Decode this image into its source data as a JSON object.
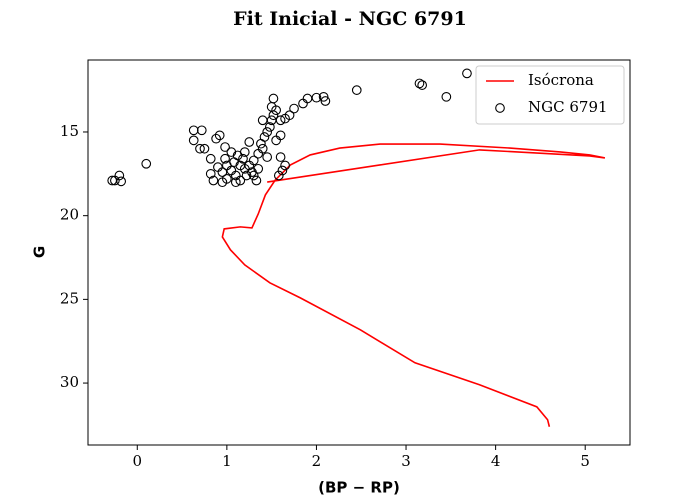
{
  "chart_data": {
    "type": "scatter",
    "title": "Fit Inicial - NGC 6791",
    "x_label": "(BP − RP)",
    "y_label": "G",
    "xlim": [
      -0.55,
      5.5
    ],
    "ylim": [
      33.7,
      10.7
    ],
    "xticks": [
      0,
      1,
      2,
      3,
      4,
      5
    ],
    "yticks": [
      15,
      20,
      25,
      30
    ],
    "legend": "upper right",
    "series": [
      {
        "name": "Isócrona",
        "type": "line",
        "color": "#ff0000",
        "x": [
          4.6,
          4.58,
          4.46,
          3.82,
          3.1,
          2.49,
          1.82,
          1.48,
          1.2,
          1.04,
          0.95,
          0.97,
          1.15,
          1.28,
          1.35,
          1.43,
          1.54,
          1.71,
          1.93,
          2.26,
          2.71,
          3.38,
          4.16,
          4.72,
          5.05,
          5.22,
          5.05,
          3.82,
          2.71,
          1.45
        ],
        "values": [
          32.61,
          32.19,
          31.42,
          30.1,
          28.79,
          26.82,
          24.91,
          24.01,
          22.94,
          22.04,
          21.27,
          20.79,
          20.67,
          20.73,
          19.9,
          18.76,
          17.87,
          16.97,
          16.37,
          15.96,
          15.72,
          15.72,
          15.96,
          16.19,
          16.37,
          16.55,
          16.43,
          16.07,
          16.97,
          17.99
        ]
      },
      {
        "name": "NGC 6791",
        "type": "scatter",
        "color": "#000000",
        "x": [
          1.0,
          1.05,
          1.1,
          1.15,
          1.2,
          1.0,
          0.95,
          1.08,
          1.12,
          1.18,
          1.25,
          1.3,
          1.22,
          1.28,
          1.05,
          0.98,
          0.9,
          1.15,
          1.2,
          1.35,
          1.4,
          1.38,
          1.42,
          1.45,
          1.48,
          1.5,
          1.52,
          1.55,
          1.5,
          1.52,
          1.6,
          1.65,
          1.7,
          1.75,
          1.85,
          1.9,
          2.0,
          2.08,
          2.1,
          1.55,
          1.6,
          1.45,
          1.35,
          1.3,
          1.6,
          1.65,
          1.62,
          1.58,
          1.4,
          1.25,
          1.33,
          1.1,
          0.95,
          0.85,
          0.82,
          0.82,
          0.88,
          0.92,
          0.98,
          0.75,
          0.7,
          0.63,
          0.72,
          0.63,
          0.1,
          -0.25,
          -0.2,
          -0.18,
          -0.28,
          2.45,
          3.15,
          3.18,
          3.45,
          3.68
        ],
        "values": [
          17.0,
          17.3,
          17.6,
          17.9,
          17.2,
          17.8,
          17.4,
          16.8,
          16.4,
          16.6,
          17.0,
          16.7,
          17.6,
          17.4,
          16.2,
          16.6,
          17.1,
          17.0,
          16.2,
          16.3,
          16.0,
          15.7,
          15.3,
          15.0,
          14.7,
          14.3,
          14.0,
          13.7,
          13.5,
          13.0,
          14.3,
          14.2,
          14.0,
          13.6,
          13.3,
          13.0,
          12.95,
          12.9,
          13.15,
          15.5,
          15.2,
          16.5,
          17.2,
          17.6,
          16.5,
          17.0,
          17.3,
          17.6,
          14.3,
          15.6,
          17.9,
          18.0,
          18.0,
          17.9,
          17.5,
          16.6,
          15.4,
          15.2,
          15.9,
          16.0,
          16.0,
          14.9,
          14.9,
          15.5,
          16.9,
          17.9,
          17.6,
          17.95,
          17.9,
          12.5,
          12.1,
          12.2,
          12.9,
          11.5
        ]
      }
    ]
  }
}
